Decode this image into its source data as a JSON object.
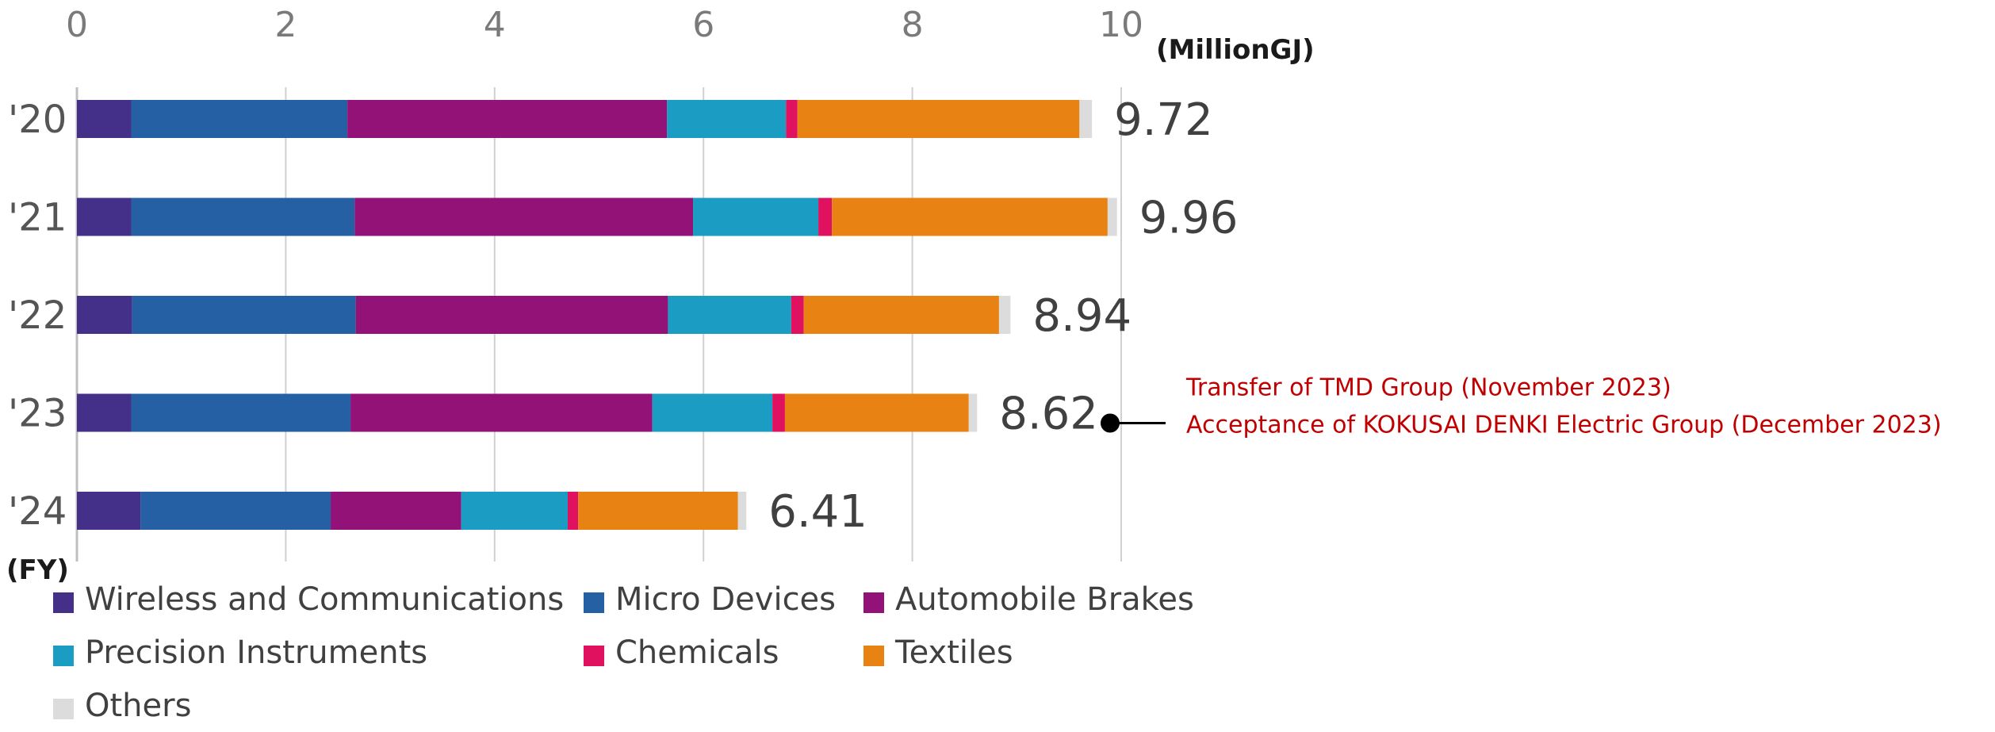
{
  "chart_data": {
    "type": "bar",
    "orientation": "horizontal",
    "stacked": true,
    "categories": [
      "'20",
      "'21",
      "'22",
      "'23",
      "'24"
    ],
    "category_axis_label": "(FY)",
    "unit_label": "(MillionGJ)",
    "xlim": [
      0,
      10
    ],
    "x_ticks": [
      "0",
      "2",
      "4",
      "6",
      "8",
      "10"
    ],
    "grid": false,
    "legend_position": "bottom",
    "totals": [
      "9.72",
      "9.96",
      "8.94",
      "8.62",
      "6.41"
    ],
    "series": [
      {
        "name": "Wireless and Communications",
        "color": "#453089",
        "values": [
          0.52,
          0.52,
          0.53,
          0.52,
          0.61
        ]
      },
      {
        "name": "Micro Devices",
        "color": "#2660a4",
        "values": [
          2.07,
          2.14,
          2.14,
          2.1,
          1.82
        ]
      },
      {
        "name": "Automobile Brakes",
        "color": "#921277",
        "values": [
          3.06,
          3.24,
          2.99,
          2.89,
          1.25
        ]
      },
      {
        "name": "Precision Instruments",
        "color": "#1a9cc3",
        "values": [
          1.14,
          1.2,
          1.18,
          1.15,
          1.02
        ]
      },
      {
        "name": "Chemicals",
        "color": "#e0115f",
        "values": [
          0.11,
          0.13,
          0.12,
          0.12,
          0.1
        ]
      },
      {
        "name": "Textiles",
        "color": "#e88212",
        "values": [
          2.7,
          2.64,
          1.87,
          1.76,
          1.53
        ]
      },
      {
        "name": "Others",
        "color": "#dcdcdc",
        "values": [
          0.12,
          0.09,
          0.11,
          0.08,
          0.08
        ]
      }
    ],
    "annotation": {
      "category": "'23",
      "lines": [
        "Transfer of TMD Group (November 2023)",
        "Acceptance of KOKUSAI DENKI Electric Group (December 2023)"
      ],
      "color": "#c00000"
    }
  }
}
